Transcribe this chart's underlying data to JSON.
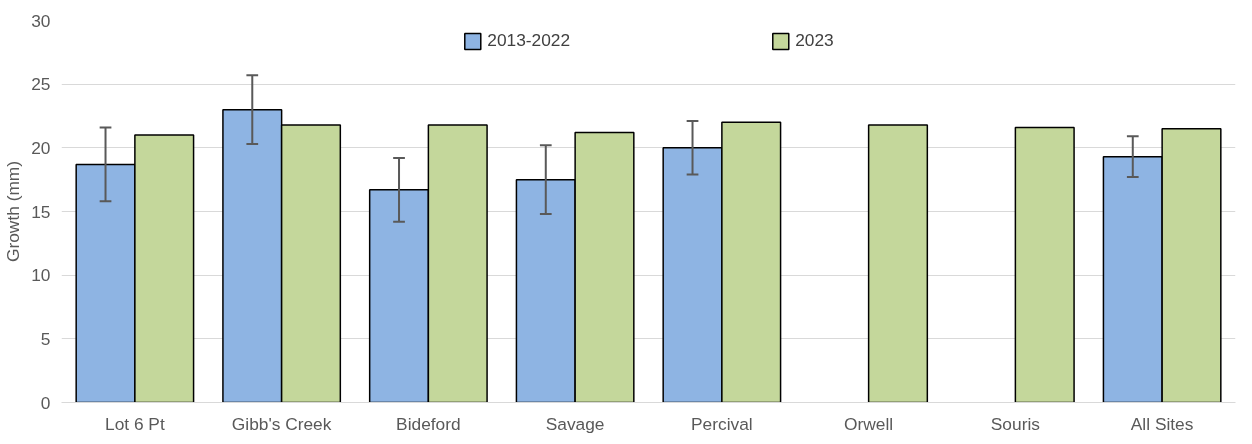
{
  "chart_data": {
    "type": "bar",
    "ylabel": "Growth (mm)",
    "categories": [
      "Lot 6 Pt",
      "Gibb's Creek",
      "Bideford",
      "Savage",
      "Percival",
      "Orwell",
      "Souris",
      "All Sites"
    ],
    "series": [
      {
        "name": "2013-2022",
        "color": "#8eb4e3",
        "values": [
          18.7,
          23.0,
          16.7,
          17.5,
          20.0,
          null,
          null,
          19.3
        ],
        "errors": [
          2.9,
          2.7,
          2.5,
          2.7,
          2.1,
          null,
          null,
          1.6
        ]
      },
      {
        "name": "2023",
        "color": "#c4d79b",
        "values": [
          21.0,
          21.8,
          21.8,
          21.2,
          22.0,
          21.8,
          21.6,
          21.5
        ]
      }
    ],
    "ylim": [
      0,
      30
    ],
    "yticks": [
      0,
      5,
      10,
      15,
      20,
      25,
      30
    ],
    "grid": "y",
    "legend": "top"
  }
}
